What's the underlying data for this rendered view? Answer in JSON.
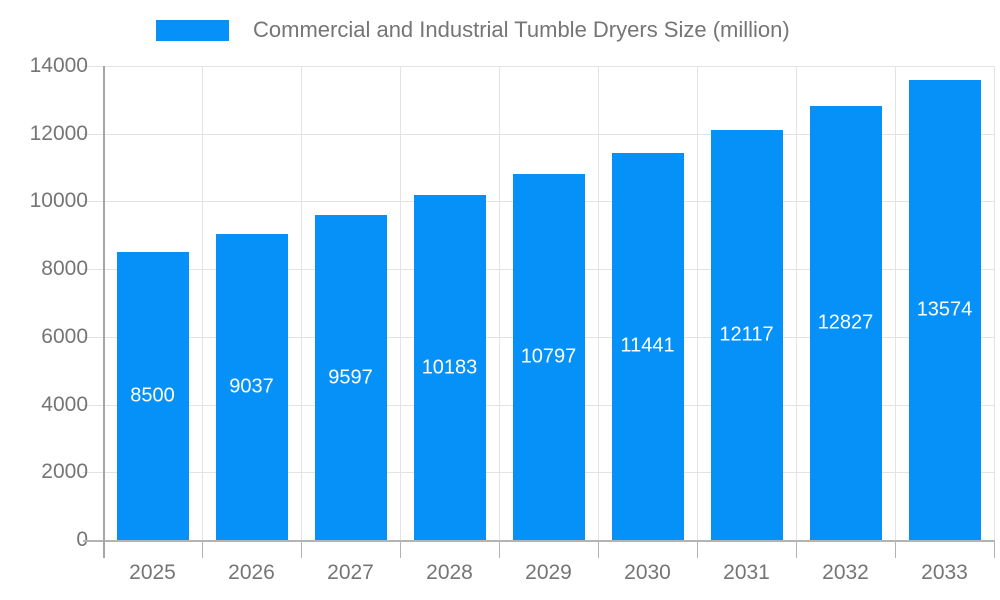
{
  "legend": {
    "label": "Commercial and Industrial Tumble Dryers Size (million)"
  },
  "colors": {
    "bar": "#0691f9",
    "axis_text": "#757575",
    "gridline": "#e3e3e3",
    "axis_line": "#b3b3b3",
    "bar_label": "#ffffff"
  },
  "chart_data": {
    "type": "bar",
    "title": "Commercial and Industrial Tumble Dryers Size (million)",
    "categories": [
      "2025",
      "2026",
      "2027",
      "2028",
      "2029",
      "2030",
      "2031",
      "2032",
      "2033"
    ],
    "series": [
      {
        "name": "Commercial and Industrial Tumble Dryers Size (million)",
        "values": [
          8500,
          9037,
          9597,
          10183,
          10797,
          11441,
          12117,
          12827,
          13574
        ]
      }
    ],
    "value_labels_shown": true,
    "value_label_position": "center-of-bar",
    "xlabel": "",
    "ylabel": "",
    "ylim": [
      0,
      14000
    ],
    "ytick_step": 2000,
    "yticks": [
      0,
      2000,
      4000,
      6000,
      8000,
      10000,
      12000,
      14000
    ],
    "grid": "horizontal-and-vertical",
    "legend_position": "top"
  }
}
